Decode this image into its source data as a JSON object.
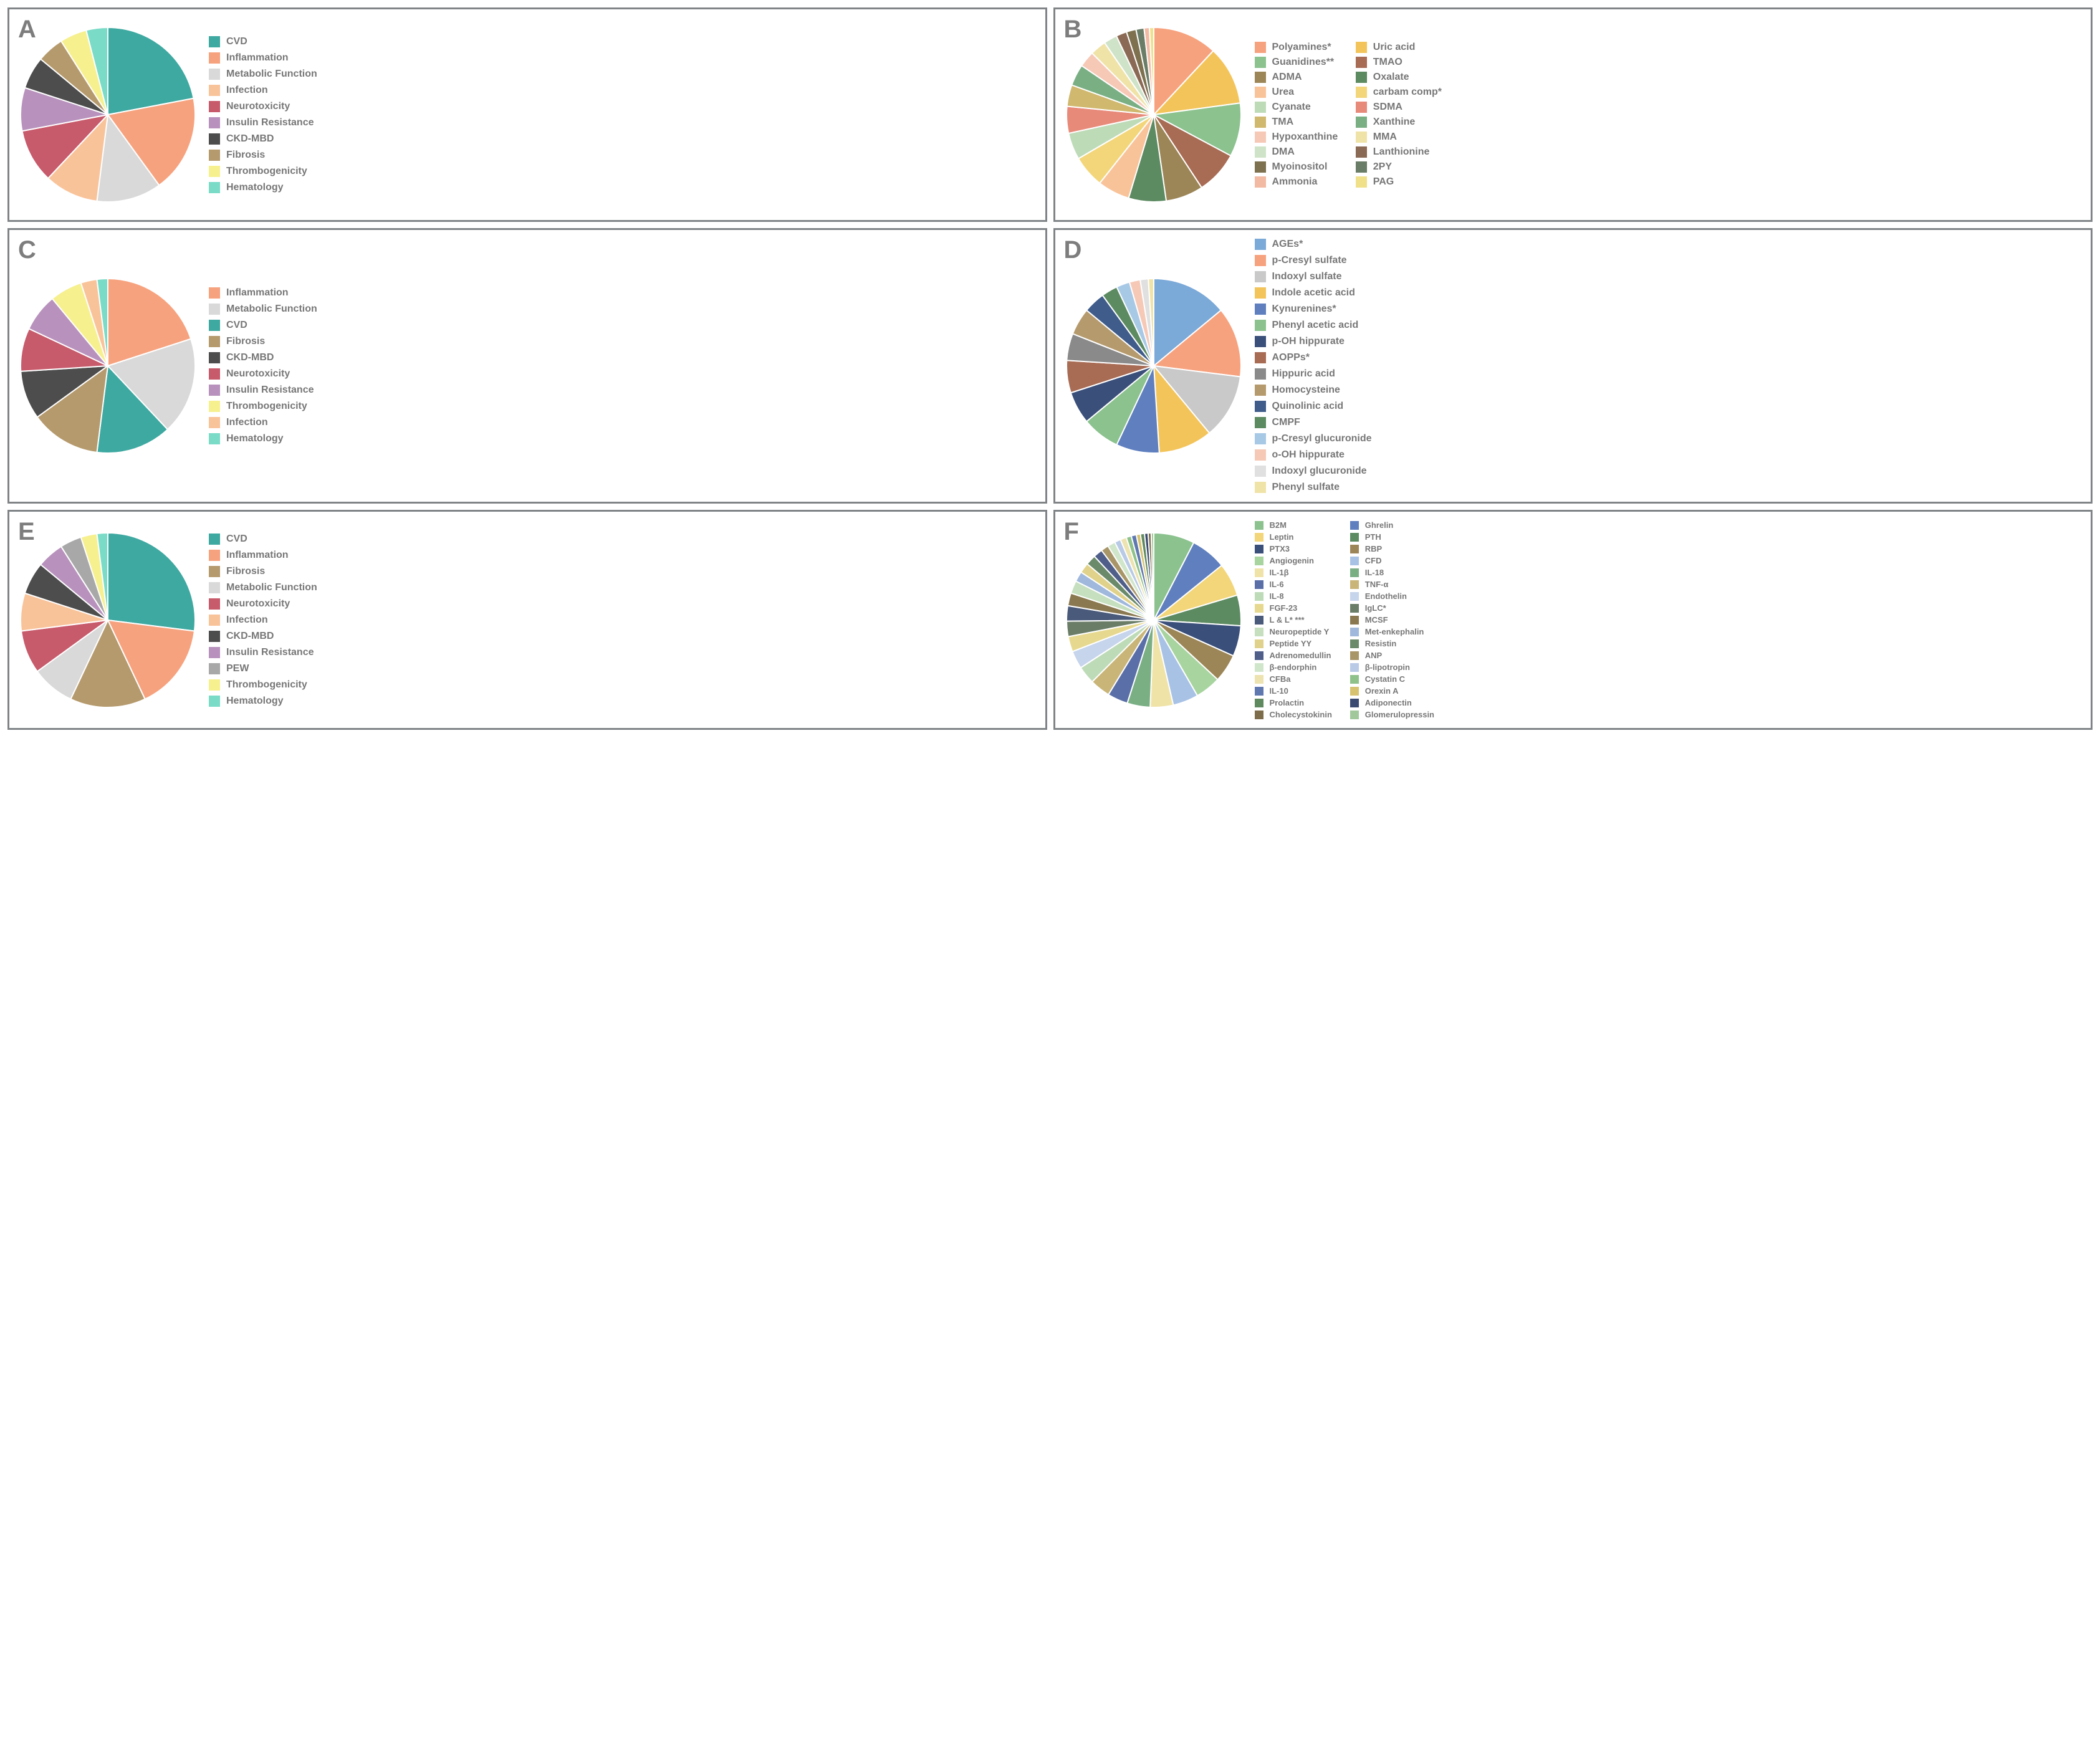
{
  "panels": [
    {
      "id": "A",
      "legend_cols": 1,
      "legend_small": false,
      "pie_radius": 140,
      "slices": [
        {
          "label": "CVD",
          "color": "#3ea9a1",
          "value": 22
        },
        {
          "label": "Inflammation",
          "color": "#f7a27e",
          "value": 18
        },
        {
          "label": "Metabolic Function",
          "color": "#d9d9d9",
          "value": 12
        },
        {
          "label": "Infection",
          "color": "#f9c39a",
          "value": 10
        },
        {
          "label": "Neurotoxicity",
          "color": "#c75a6b",
          "value": 10
        },
        {
          "label": "Insulin Resistance",
          "color": "#b892bd",
          "value": 8
        },
        {
          "label": "CKD-MBD",
          "color": "#4d4d4d",
          "value": 6
        },
        {
          "label": "Fibrosis",
          "color": "#b59a6d",
          "value": 5
        },
        {
          "label": "Thrombogenicity",
          "color": "#f6f08f",
          "value": 5
        },
        {
          "label": "Hematology",
          "color": "#7adbc7",
          "value": 4
        }
      ]
    },
    {
      "id": "B",
      "legend_cols": 2,
      "legend_small": false,
      "pie_radius": 140,
      "slices": [
        {
          "label": "Polyamines*",
          "color": "#f7a27e",
          "value": 12
        },
        {
          "label": "Uric acid",
          "color": "#f3c45a",
          "value": 11
        },
        {
          "label": "Guanidines**",
          "color": "#8bc28e",
          "value": 10
        },
        {
          "label": "TMAO",
          "color": "#a86b54",
          "value": 8
        },
        {
          "label": "ADMA",
          "color": "#9c8657",
          "value": 7
        },
        {
          "label": "Oxalate",
          "color": "#5c8a61",
          "value": 7
        },
        {
          "label": "Urea",
          "color": "#f9c39a",
          "value": 6
        },
        {
          "label": "carbam comp*",
          "color": "#f3d67a",
          "value": 6
        },
        {
          "label": "Cyanate",
          "color": "#bedbb8",
          "value": 5
        },
        {
          "label": "SDMA",
          "color": "#e88a7a",
          "value": 5
        },
        {
          "label": "TMA",
          "color": "#d0b86f",
          "value": 4
        },
        {
          "label": "Xanthine",
          "color": "#7aaf84",
          "value": 4
        },
        {
          "label": "Hypoxanthine",
          "color": "#f6c9b7",
          "value": 3
        },
        {
          "label": "MMA",
          "color": "#f0e3a8",
          "value": 3
        },
        {
          "label": "DMA",
          "color": "#cfe3c8",
          "value": 2.5
        },
        {
          "label": "Lanthionine",
          "color": "#8b6a55",
          "value": 2
        },
        {
          "label": "Myoinositol",
          "color": "#7d714f",
          "value": 1.8
        },
        {
          "label": "2PY",
          "color": "#6a7d67",
          "value": 1.5
        },
        {
          "label": "Ammonia",
          "color": "#f2b9a3",
          "value": 1
        },
        {
          "label": "PAG",
          "color": "#f0e08a",
          "value": 0.8
        }
      ]
    },
    {
      "id": "C",
      "legend_cols": 1,
      "legend_small": false,
      "pie_radius": 140,
      "slices": [
        {
          "label": "Inflammation",
          "color": "#f7a27e",
          "value": 20
        },
        {
          "label": "Metabolic Function",
          "color": "#d9d9d9",
          "value": 18
        },
        {
          "label": "CVD",
          "color": "#3ea9a1",
          "value": 14
        },
        {
          "label": "Fibrosis",
          "color": "#b59a6d",
          "value": 13
        },
        {
          "label": "CKD-MBD",
          "color": "#4d4d4d",
          "value": 9
        },
        {
          "label": "Neurotoxicity",
          "color": "#c75a6b",
          "value": 8
        },
        {
          "label": "Insulin Resistance",
          "color": "#b892bd",
          "value": 7
        },
        {
          "label": "Thrombogenicity",
          "color": "#f6f08f",
          "value": 6
        },
        {
          "label": "Infection",
          "color": "#f9c39a",
          "value": 3
        },
        {
          "label": "Hematology",
          "color": "#7adbc7",
          "value": 2
        }
      ]
    },
    {
      "id": "D",
      "legend_cols": 1,
      "legend_small": false,
      "pie_radius": 140,
      "slices": [
        {
          "label": "AGEs*",
          "color": "#7ba9d8",
          "value": 14
        },
        {
          "label": "p-Cresyl sulfate",
          "color": "#f7a27e",
          "value": 13
        },
        {
          "label": "Indoxyl sulfate",
          "color": "#c9c9c9",
          "value": 12
        },
        {
          "label": "Indole acetic acid",
          "color": "#f3c45a",
          "value": 10
        },
        {
          "label": "Kynurenines*",
          "color": "#5f7fbf",
          "value": 8
        },
        {
          "label": "Phenyl acetic acid",
          "color": "#8bc28e",
          "value": 7
        },
        {
          "label": "p-OH hippurate",
          "color": "#3a4f7a",
          "value": 6
        },
        {
          "label": "AOPPs*",
          "color": "#a86b54",
          "value": 6
        },
        {
          "label": "Hippuric acid",
          "color": "#8a8a8a",
          "value": 5
        },
        {
          "label": "Homocysteine",
          "color": "#b59a6d",
          "value": 5
        },
        {
          "label": "Quinolinic acid",
          "color": "#3f5c8a",
          "value": 4
        },
        {
          "label": "CMPF",
          "color": "#5c8a61",
          "value": 3
        },
        {
          "label": "p-Cresyl glucuronide",
          "color": "#a8c9e6",
          "value": 2.5
        },
        {
          "label": "o-OH hippurate",
          "color": "#f6c9b7",
          "value": 2
        },
        {
          "label": "Indoxyl glucuronide",
          "color": "#e0e0e0",
          "value": 1.5
        },
        {
          "label": "Phenyl sulfate",
          "color": "#f0e3a8",
          "value": 1
        }
      ]
    },
    {
      "id": "E",
      "legend_cols": 1,
      "legend_small": false,
      "pie_radius": 140,
      "slices": [
        {
          "label": "CVD",
          "color": "#3ea9a1",
          "value": 27
        },
        {
          "label": "Inflammation",
          "color": "#f7a27e",
          "value": 16
        },
        {
          "label": "Fibrosis",
          "color": "#b59a6d",
          "value": 14
        },
        {
          "label": "Metabolic Function",
          "color": "#d9d9d9",
          "value": 8
        },
        {
          "label": "Neurotoxicity",
          "color": "#c75a6b",
          "value": 8
        },
        {
          "label": "Infection",
          "color": "#f9c39a",
          "value": 7
        },
        {
          "label": "CKD-MBD",
          "color": "#4d4d4d",
          "value": 6
        },
        {
          "label": "Insulin Resistance",
          "color": "#b892bd",
          "value": 5
        },
        {
          "label": "PEW",
          "color": "#a8a8a8",
          "value": 4
        },
        {
          "label": "Thrombogenicity",
          "color": "#f6f08f",
          "value": 3
        },
        {
          "label": "Hematology",
          "color": "#7adbc7",
          "value": 2
        }
      ]
    },
    {
      "id": "F",
      "legend_cols": 2,
      "legend_small": true,
      "pie_radius": 140,
      "slices": [
        {
          "label": "B2M",
          "color": "#8bc28e",
          "value": 8
        },
        {
          "label": "Ghrelin",
          "color": "#5f7fbf",
          "value": 7
        },
        {
          "label": "Leptin",
          "color": "#f3d67a",
          "value": 6.5
        },
        {
          "label": "PTH",
          "color": "#5c8a61",
          "value": 6
        },
        {
          "label": "PTX3",
          "color": "#3a4f7a",
          "value": 6
        },
        {
          "label": "RBP",
          "color": "#9c8657",
          "value": 5.5
        },
        {
          "label": "Angiogenin",
          "color": "#a8d4a0",
          "value": 5
        },
        {
          "label": "CFD",
          "color": "#a8c2e6",
          "value": 5
        },
        {
          "label": "IL-1β",
          "color": "#f0e3a8",
          "value": 4.5
        },
        {
          "label": "IL-18",
          "color": "#7aaf84",
          "value": 4.5
        },
        {
          "label": "IL-6",
          "color": "#5a6fa8",
          "value": 4
        },
        {
          "label": "TNF-α",
          "color": "#c9b578",
          "value": 4
        },
        {
          "label": "IL-8",
          "color": "#bedbb8",
          "value": 3.5
        },
        {
          "label": "Endothelin",
          "color": "#c6d4ec",
          "value": 3.5
        },
        {
          "label": "FGF-23",
          "color": "#e6d98f",
          "value": 3
        },
        {
          "label": "IgLC*",
          "color": "#6a7d67",
          "value": 3
        },
        {
          "label": "L & L*   ***",
          "color": "#4a5a7a",
          "value": 3
        },
        {
          "label": "MCSF",
          "color": "#8a7850",
          "value": 2.5
        },
        {
          "label": "Neuropeptide Y",
          "color": "#c6e0bf",
          "value": 2.5
        },
        {
          "label": "Met-enkephalin",
          "color": "#9fb8dc",
          "value": 2
        },
        {
          "label": "Peptide YY",
          "color": "#e0d28a",
          "value": 2
        },
        {
          "label": "Resistin",
          "color": "#6a8a6a",
          "value": 2
        },
        {
          "label": "Adrenomedullin",
          "color": "#4f5f8a",
          "value": 1.8
        },
        {
          "label": "ANP",
          "color": "#a89568",
          "value": 1.5
        },
        {
          "label": "β-endorphin",
          "color": "#d0e6cb",
          "value": 1.5
        },
        {
          "label": "β-lipotropin",
          "color": "#b8cae6",
          "value": 1.2
        },
        {
          "label": "CFBa",
          "color": "#ece3b0",
          "value": 1.2
        },
        {
          "label": "Cystatin C",
          "color": "#8fc28a",
          "value": 1
        },
        {
          "label": "IL-10",
          "color": "#6078b0",
          "value": 1
        },
        {
          "label": "Orexin A",
          "color": "#d6c26f",
          "value": 0.8
        },
        {
          "label": "Prolactin",
          "color": "#5f8a5f",
          "value": 0.8
        },
        {
          "label": "Adiponectin",
          "color": "#3a4a70",
          "value": 0.7
        },
        {
          "label": "Cholecystokinin",
          "color": "#7d6d4a",
          "value": 0.6
        },
        {
          "label": "Glomerulopressin",
          "color": "#a0c89a",
          "value": 0.5
        }
      ]
    }
  ]
}
